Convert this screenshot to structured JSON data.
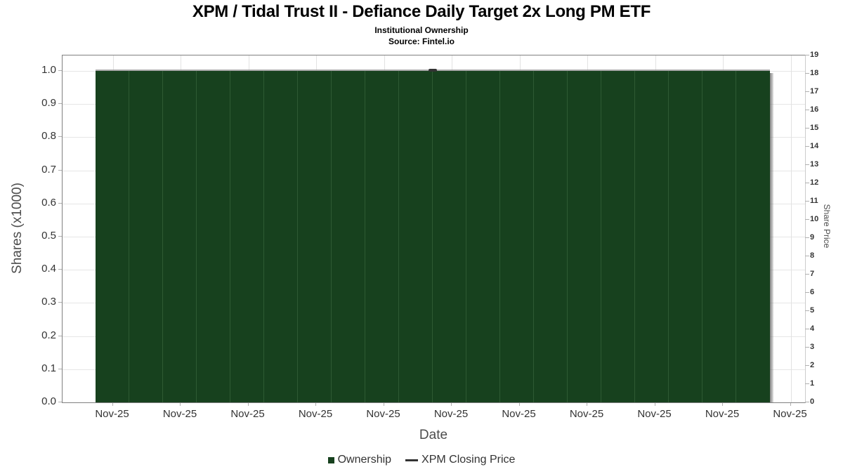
{
  "chart_data": {
    "type": "bar",
    "title": "XPM / Tidal Trust II - Defiance Daily Target 2x Long PM ETF",
    "subtitle": "Institutional Ownership",
    "source": "Source: Fintel.io",
    "xlabel": "Date",
    "ylabel_left": "Shares (x1000)",
    "ylabel_right": "Share Price",
    "x_tick_labels": [
      "Nov-25",
      "Nov-25",
      "Nov-25",
      "Nov-25",
      "Nov-25",
      "Nov-25",
      "Nov-25",
      "Nov-25",
      "Nov-25",
      "Nov-25",
      "Nov-25"
    ],
    "left_axis": {
      "min": 0.0,
      "max": 1.0,
      "ticks": [
        1.0,
        0.9,
        0.8,
        0.7,
        0.6,
        0.5,
        0.4,
        0.3,
        0.2,
        0.1,
        0.0
      ]
    },
    "right_axis": {
      "min": 0,
      "max": 19,
      "ticks": [
        19,
        18,
        17,
        16,
        15,
        14,
        13,
        12,
        11,
        10,
        9,
        8,
        7,
        6,
        5,
        4,
        3,
        2,
        1,
        0
      ]
    },
    "grid": true,
    "legend_position": "bottom-center",
    "series": [
      {
        "name": "Ownership",
        "type": "bar",
        "color": "#17411e",
        "separator_color": "#2e5a33",
        "category": "Nov-25",
        "values": [
          1.0,
          1.0,
          1.0,
          1.0,
          1.0,
          1.0,
          1.0,
          1.0,
          1.0,
          1.0,
          1.0,
          1.0,
          1.0,
          1.0,
          1.0,
          1.0,
          1.0,
          1.0,
          1.0,
          1.0
        ]
      },
      {
        "name": "XPM Closing Price",
        "type": "line",
        "color": "#333333",
        "points": [
          {
            "x": "Nov-25",
            "y": 18.2
          }
        ]
      }
    ],
    "legend": [
      {
        "label": "Ownership",
        "marker": "square",
        "color": "#17411e"
      },
      {
        "label": "XPM Closing Price",
        "marker": "line",
        "color": "#333333"
      }
    ]
  }
}
